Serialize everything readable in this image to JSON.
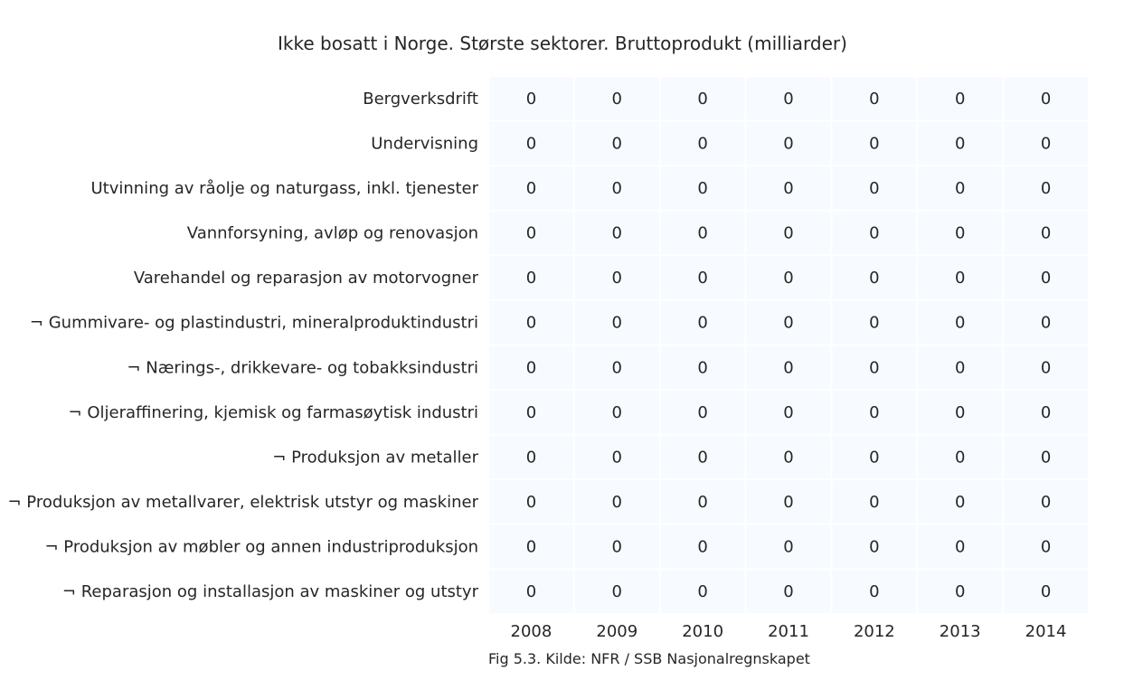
{
  "chart_data": {
    "type": "heatmap",
    "title": "Ikke bosatt i Norge. Største sektorer. Bruttoprodukt (milliarder)",
    "caption": "Fig 5.3. Kilde: NFR / SSB Nasjonalregnskapet",
    "x": [
      "2008",
      "2009",
      "2010",
      "2011",
      "2012",
      "2013",
      "2014"
    ],
    "y": [
      "Bergverksdrift",
      "Undervisning",
      "Utvinning av råolje og naturgass, inkl. tjenester",
      "Vannforsyning, avløp og renovasjon",
      "Varehandel og reparasjon av motorvogner",
      "¬ Gummivare- og plastindustri, mineralproduktindustri",
      "¬ Nærings-, drikkevare- og tobakksindustri",
      "¬ Oljeraffinering, kjemisk og farmasøytisk industri",
      "¬ Produksjon av metaller",
      "¬ Produksjon av metallvarer, elektrisk utstyr og maskiner",
      "¬ Produksjon av møbler og annen industriproduksjon",
      "¬ Reparasjon og installasjon av maskiner og utstyr"
    ],
    "values": [
      [
        0,
        0,
        0,
        0,
        0,
        0,
        0
      ],
      [
        0,
        0,
        0,
        0,
        0,
        0,
        0
      ],
      [
        0,
        0,
        0,
        0,
        0,
        0,
        0
      ],
      [
        0,
        0,
        0,
        0,
        0,
        0,
        0
      ],
      [
        0,
        0,
        0,
        0,
        0,
        0,
        0
      ],
      [
        0,
        0,
        0,
        0,
        0,
        0,
        0
      ],
      [
        0,
        0,
        0,
        0,
        0,
        0,
        0
      ],
      [
        0,
        0,
        0,
        0,
        0,
        0,
        0
      ],
      [
        0,
        0,
        0,
        0,
        0,
        0,
        0
      ],
      [
        0,
        0,
        0,
        0,
        0,
        0,
        0
      ],
      [
        0,
        0,
        0,
        0,
        0,
        0,
        0
      ],
      [
        0,
        0,
        0,
        0,
        0,
        0,
        0
      ]
    ],
    "cell_color": "#f7fbff",
    "grid_color": "#ffffff"
  }
}
